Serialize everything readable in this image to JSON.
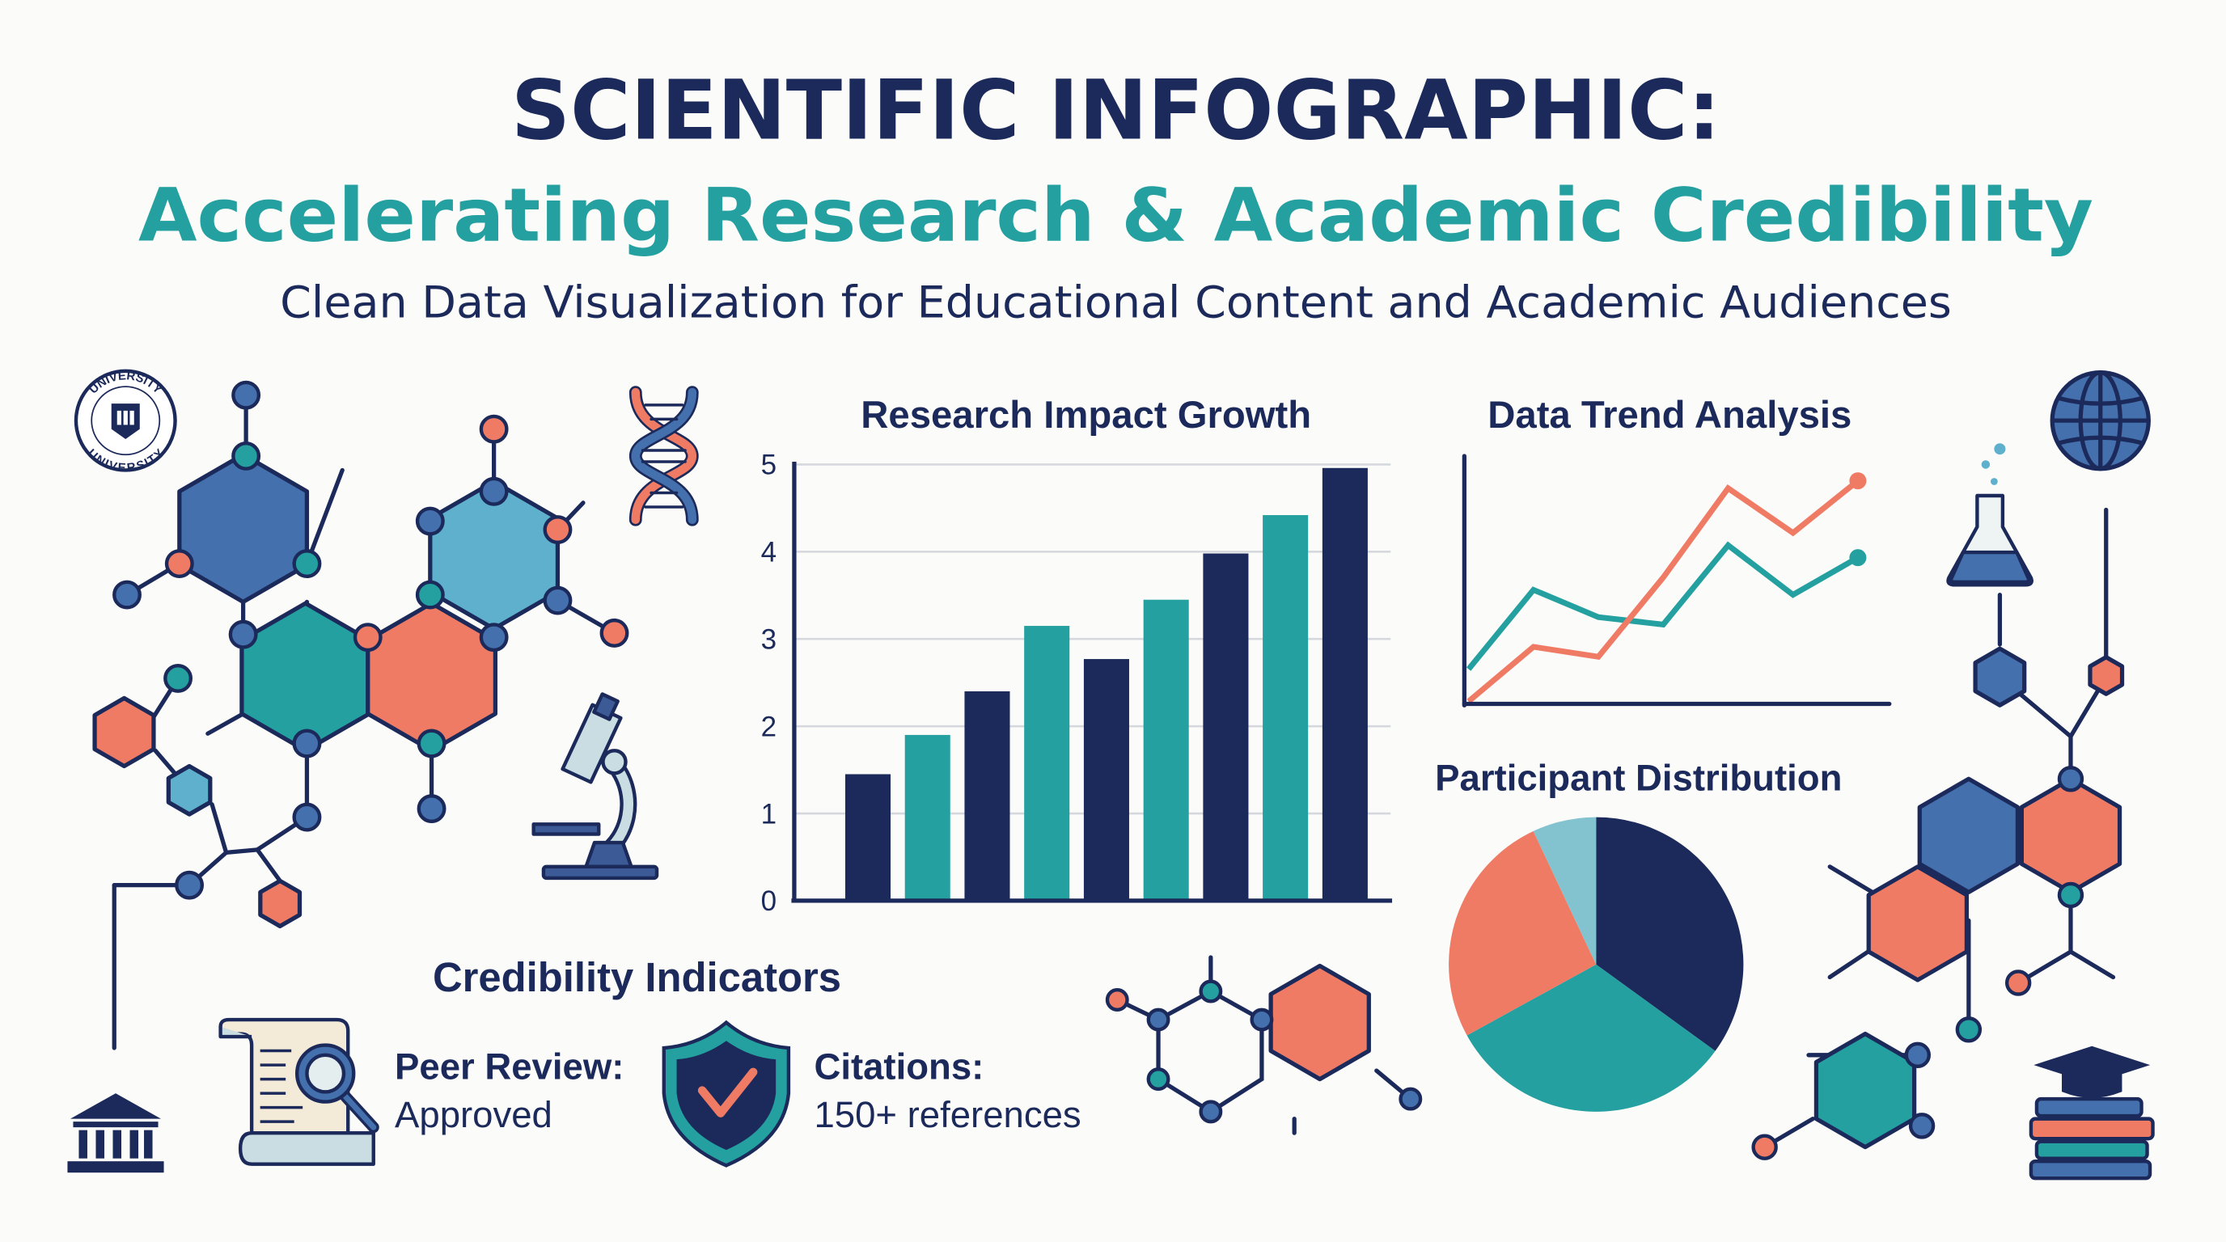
{
  "header": {
    "title_line1": "SCIENTIFIC INFOGRAPHIC:",
    "title_line2": "Accelerating Research & Academic Credibility",
    "subtitle": "Clean Data Visualization for Educational Content and Academic Audiences"
  },
  "colors": {
    "navy": "#1b2a5a",
    "teal": "#23a09f",
    "coral": "#ef7b65",
    "blue": "#4470ad",
    "light_blue": "#5fb0cc",
    "pale_blue": "#83c3cf"
  },
  "logo": {
    "seal_text": "UNIVERSITY"
  },
  "icons": [
    "university-seal-icon",
    "dna-icon",
    "microscope-icon",
    "bank-icon",
    "globe-icon",
    "flask-icon",
    "books-icon",
    "document-search-icon",
    "shield-check-icon"
  ],
  "chart_data": [
    {
      "type": "bar",
      "title": "Research Impact Growth",
      "xlabel": "",
      "ylabel": "",
      "ylim": [
        0,
        5
      ],
      "yticks": [
        "0",
        "1",
        "2",
        "3",
        "4",
        "5"
      ],
      "grid": true,
      "values": [
        1.45,
        1.9,
        2.4,
        3.15,
        2.77,
        3.45,
        3.98,
        4.42,
        4.96
      ],
      "bar_colors": [
        "#1b2a5a",
        "#23a09f",
        "#1b2a5a",
        "#23a09f",
        "#1b2a5a",
        "#23a09f",
        "#1b2a5a",
        "#23a09f",
        "#1b2a5a"
      ]
    },
    {
      "type": "line",
      "title": "Data Trend Analysis",
      "xlabel": "",
      "ylabel": "",
      "ylim": [
        0,
        10
      ],
      "grid": false,
      "series": [
        {
          "color": "#23a09f",
          "values": [
            1.4,
            4.6,
            3.5,
            3.2,
            6.4,
            4.4,
            5.9
          ]
        },
        {
          "color": "#ef7b65",
          "values": [
            0.1,
            2.3,
            1.9,
            5.1,
            8.7,
            6.9,
            9.0
          ]
        }
      ]
    },
    {
      "type": "pie",
      "title": "Participant Distribution",
      "values": [
        35,
        32,
        26,
        7
      ],
      "colors": [
        "#1b2a5a",
        "#23a09f",
        "#ef7b65",
        "#83c3cf"
      ]
    }
  ],
  "credibility": {
    "title": "Credibility Indicators",
    "items": [
      {
        "label": "Peer Review:",
        "value": "Approved"
      },
      {
        "label": "Citations:",
        "value": "150+ references"
      }
    ]
  }
}
